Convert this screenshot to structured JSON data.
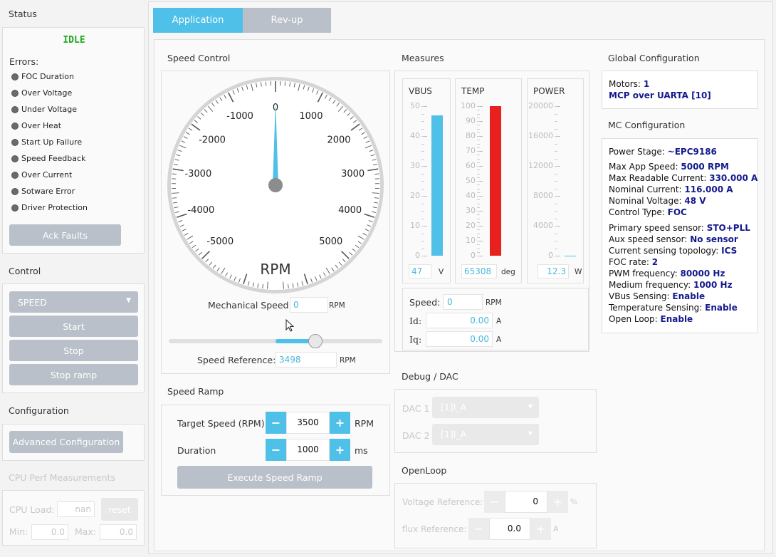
{
  "status": {
    "title": "Status",
    "state": "IDLE",
    "errors_label": "Errors:",
    "errors": [
      "FOC Duration",
      "Over Voltage",
      "Under Voltage",
      "Over Heat",
      "Start Up Failure",
      "Speed Feedback",
      "Over Current",
      "Sotware Error",
      "Driver Protection"
    ],
    "ack_label": "Ack Faults"
  },
  "control": {
    "title": "Control",
    "mode": "SPEED",
    "start": "Start",
    "stop": "Stop",
    "stop_ramp": "Stop ramp"
  },
  "configuration": {
    "title": "Configuration",
    "advanced": "Advanced Configuration"
  },
  "cpu": {
    "title": "CPU Perf Measurements",
    "load_label": "CPU Load:",
    "load_value": "nan",
    "reset": "reset",
    "min_label": "Min:",
    "min_value": "0.0",
    "max_label": "Max:",
    "max_value": "0.0"
  },
  "tabs": [
    {
      "label": "Application",
      "active": true
    },
    {
      "label": "Rev-up",
      "active": false
    }
  ],
  "speed_control": {
    "title": "Speed Control",
    "gauge_unit": "RPM",
    "gauge_labels": [
      "-5000",
      "-4000",
      "-3000",
      "-2000",
      "-1000",
      "0",
      "1000",
      "2000",
      "3000",
      "4000",
      "5000"
    ],
    "needle_value": 0,
    "mech_speed_label": "Mechanical Speed:",
    "mech_speed_value": "0",
    "mech_speed_unit": "RPM",
    "slider_fraction": 0.6996,
    "speed_ref_label": "Speed Reference:",
    "speed_ref_value": "3498",
    "speed_ref_unit": "RPM"
  },
  "speed_ramp": {
    "title": "Speed Ramp",
    "target_label": "Target Speed (RPM)",
    "target_value": "3500",
    "target_unit": "RPM",
    "duration_label": "Duration",
    "duration_value": "1000",
    "duration_unit": "ms",
    "minus": "−",
    "plus": "+",
    "execute": "Execute Speed Ramp"
  },
  "measures": {
    "title": "Measures",
    "vbus": {
      "title": "VBUS",
      "ticks": [
        "50",
        "40",
        "30",
        "20",
        "10",
        "0"
      ],
      "value": "47",
      "unit": "V",
      "fraction": 0.94,
      "color": "#4fc0e8"
    },
    "temp": {
      "title": "TEMP",
      "ticks": [
        "100",
        "90",
        "80",
        "70",
        "60",
        "50",
        "40",
        "30",
        "20",
        "10",
        "0"
      ],
      "value": "65308",
      "unit": "deg",
      "fraction": 1.0,
      "color": "#e82020"
    },
    "power": {
      "title": "POWER",
      "ticks": [
        "20000",
        "16000",
        "12000",
        "8000",
        "4000",
        "0"
      ],
      "value": "12.3",
      "unit": "W",
      "fraction": 0.0006,
      "color": "#4fc0e8"
    },
    "speed_label": "Speed:",
    "speed_value": "0",
    "speed_unit": "RPM",
    "id_label": "Id:",
    "id_value": "0.00",
    "id_unit": "A",
    "iq_label": "Iq:",
    "iq_value": "0.00",
    "iq_unit": "A"
  },
  "debug": {
    "title": "Debug / DAC",
    "dac1_label": "DAC 1",
    "dac1_value": "[1]I_A",
    "dac2_label": "DAC 2",
    "dac2_value": "[1]I_A"
  },
  "openloop": {
    "title": "OpenLoop",
    "vref_label": "Voltage Reference:",
    "vref_value": "0",
    "vref_unit": "%",
    "flux_label": "flux Reference:",
    "flux_value": "0.0",
    "flux_unit": "A"
  },
  "global_config": {
    "title": "Global Configuration",
    "motors_label": "Motors:",
    "motors_value": "1",
    "link": "MCP over UARTA [10]"
  },
  "mc_config": {
    "title": "MC Configuration",
    "power_stage_label": "Power Stage:",
    "power_stage_value": "~EPC9186",
    "lines_group1": [
      {
        "k": "Max App Speed:",
        "v": "5000 RPM"
      },
      {
        "k": "Max Readable Current:",
        "v": "330.000 A"
      },
      {
        "k": "Nominal Current:",
        "v": "116.000 A"
      },
      {
        "k": "Nominal Voltage:",
        "v": "48 V"
      },
      {
        "k": "Control Type:",
        "v": "FOC"
      }
    ],
    "lines_group2": [
      {
        "k": "Primary speed sensor:",
        "v": "STO+PLL"
      },
      {
        "k": "Aux speed sensor:",
        "v": "No sensor"
      },
      {
        "k": "Current sensing topology:",
        "v": "ICS"
      },
      {
        "k": "FOC rate:",
        "v": "2"
      },
      {
        "k": "PWM frequency:",
        "v": "80000 Hz"
      },
      {
        "k": "Medium frequency:",
        "v": "1000 Hz"
      },
      {
        "k": "VBus Sensing:",
        "v": "Enable"
      },
      {
        "k": "Temperature Sensing:",
        "v": "Enable"
      },
      {
        "k": "Open Loop:",
        "v": "Enable"
      }
    ]
  }
}
